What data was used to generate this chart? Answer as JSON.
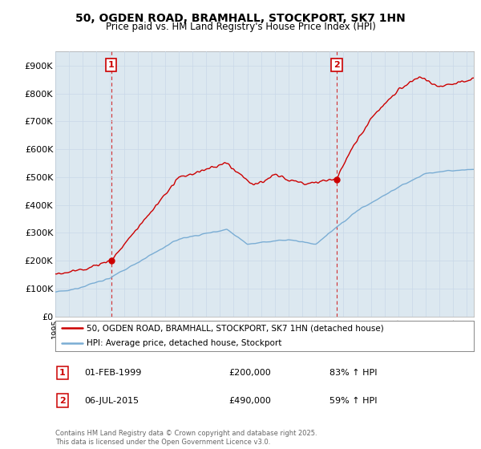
{
  "title": "50, OGDEN ROAD, BRAMHALL, STOCKPORT, SK7 1HN",
  "subtitle": "Price paid vs. HM Land Registry's House Price Index (HPI)",
  "legend_line1": "50, OGDEN ROAD, BRAMHALL, STOCKPORT, SK7 1HN (detached house)",
  "legend_line2": "HPI: Average price, detached house, Stockport",
  "annotation1_label": "1",
  "annotation1_date": "01-FEB-1999",
  "annotation1_price": "£200,000",
  "annotation1_hpi": "83% ↑ HPI",
  "annotation2_label": "2",
  "annotation2_date": "06-JUL-2015",
  "annotation2_price": "£490,000",
  "annotation2_hpi": "59% ↑ HPI",
  "footer": "Contains HM Land Registry data © Crown copyright and database right 2025.\nThis data is licensed under the Open Government Licence v3.0.",
  "hpi_color": "#7aadd4",
  "price_color": "#cc0000",
  "marker_color": "#cc0000",
  "annotation_box_color": "#cc0000",
  "grid_color": "#c8d8e8",
  "plot_bg_color": "#dce8f0",
  "background_color": "#ffffff",
  "ylim": [
    0,
    950000
  ],
  "yticks": [
    0,
    100000,
    200000,
    300000,
    400000,
    500000,
    600000,
    700000,
    800000,
    900000
  ],
  "ytick_labels": [
    "£0",
    "£100K",
    "£200K",
    "£300K",
    "£400K",
    "£500K",
    "£600K",
    "£700K",
    "£800K",
    "£900K"
  ],
  "purchase1_year": 1999.08,
  "purchase1_price": 200000,
  "purchase2_year": 2015.5,
  "purchase2_price": 490000
}
